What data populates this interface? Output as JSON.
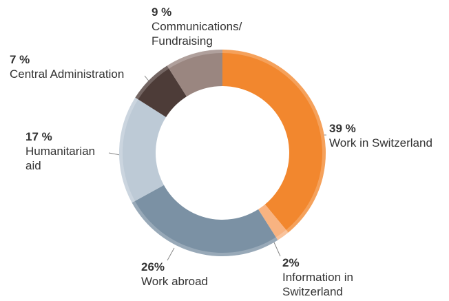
{
  "chart_data": {
    "type": "donut",
    "categories": [
      "Work in Switzerland",
      "Information in Switzerland",
      "Work abroad",
      "Humanitarian aid",
      "Central Administration",
      "Communications/ Fundraising"
    ],
    "values": [
      39,
      2,
      26,
      17,
      7,
      9
    ],
    "value_labels": [
      "39 %",
      "2%",
      "26%",
      "17 %",
      "7 %",
      "9 %"
    ],
    "colors": [
      "#f2872e",
      "#f8b381",
      "#7b91a4",
      "#bdcad6",
      "#4d3c38",
      "#9a8680"
    ]
  }
}
